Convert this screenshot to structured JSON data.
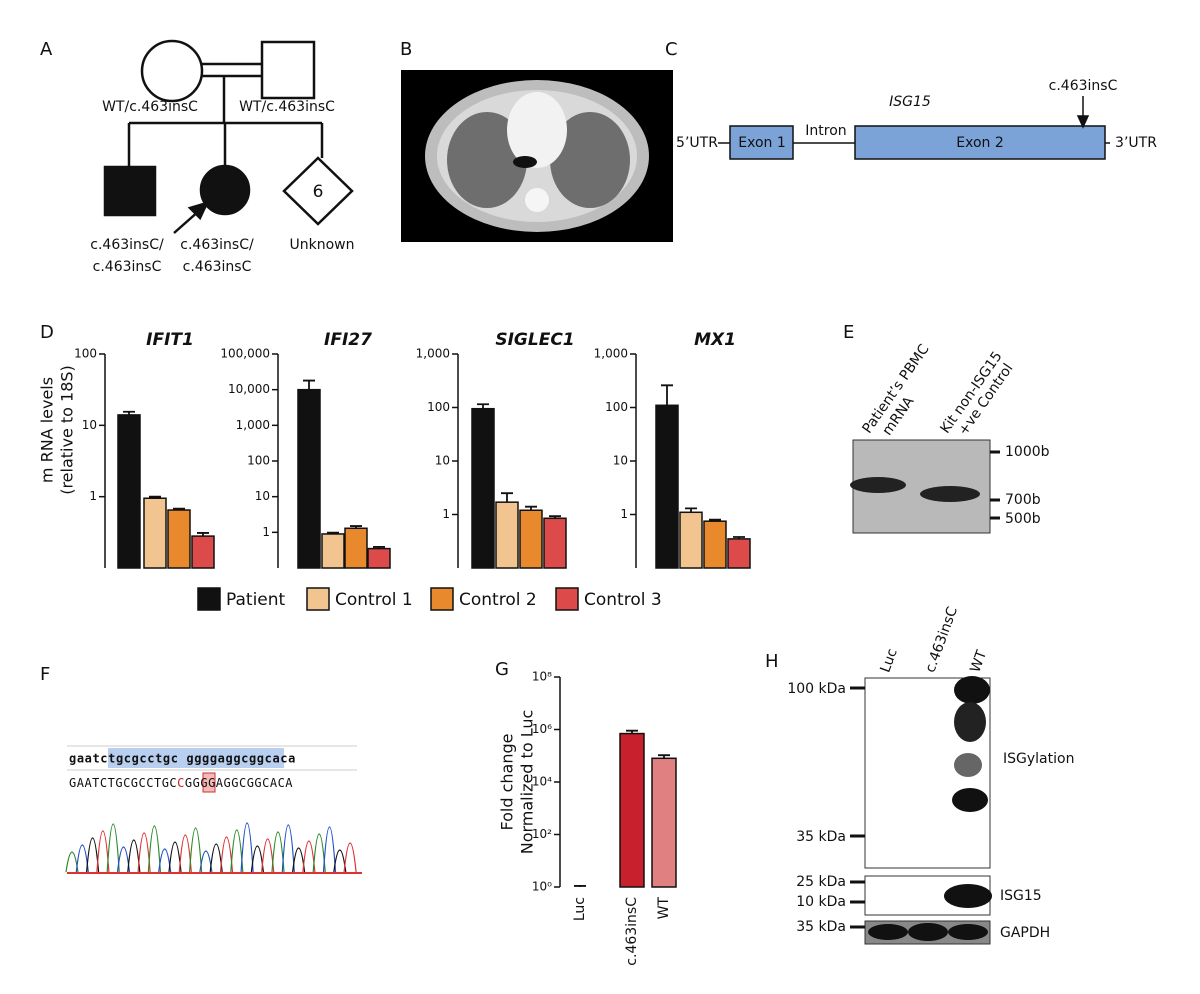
{
  "panel_labels": [
    "A",
    "B",
    "C",
    "D",
    "E",
    "F",
    "G",
    "H"
  ],
  "pedigree": {
    "parents": [
      "WT/c.463insC",
      "WT/c.463insC"
    ],
    "children": [
      [
        "c.463insC/",
        "c.463insC"
      ],
      [
        "c.463insC/",
        "c.463insC"
      ],
      [
        "Unknown"
      ]
    ],
    "sibling_count": "6"
  },
  "gene": {
    "name": "ISG15",
    "utr5": "5’UTR",
    "exon1": "Exon 1",
    "intron": "Intron",
    "exon2": "Exon 2",
    "utr3": "3’UTR",
    "mutation": "c.463insC"
  },
  "legend": [
    {
      "name": "Patient",
      "color": "#111111"
    },
    {
      "name": "Control 1",
      "color": "#f2c48f"
    },
    {
      "name": "Control 2",
      "color": "#e8892e"
    },
    {
      "name": "Control 3",
      "color": "#dc4a4a"
    }
  ],
  "chart_data": [
    {
      "type": "bar",
      "title": "IFIT1",
      "y_label": [
        "m RNA levels",
        "(relative to 18S)"
      ],
      "log_scale": true,
      "categories": [
        null
      ],
      "ylim": [
        0.1,
        100
      ],
      "yticks": [
        1,
        10,
        100
      ],
      "series": [
        {
          "values": [
            14
          ],
          "errors": [
            1.5
          ]
        },
        {
          "values": [
            0.95
          ],
          "errors": [
            0.05
          ]
        },
        {
          "values": [
            0.65
          ],
          "errors": [
            0.03
          ]
        },
        {
          "values": [
            0.28
          ],
          "errors": [
            0.03
          ]
        }
      ]
    },
    {
      "type": "bar",
      "title": "IFI27",
      "log_scale": true,
      "categories": [
        null
      ],
      "ylim": [
        0.1,
        100000
      ],
      "yticks": [
        1,
        10,
        100,
        {
          "value": 1000,
          "label": "1,000"
        },
        {
          "value": 10000,
          "label": "10,000"
        },
        {
          "value": 100000,
          "label": "100,000"
        }
      ],
      "series": [
        {
          "values": [
            10000
          ],
          "errors": [
            8000
          ]
        },
        {
          "values": [
            0.9
          ],
          "errors": [
            0.08
          ]
        },
        {
          "values": [
            1.3
          ],
          "errors": [
            0.2
          ]
        },
        {
          "values": [
            0.35
          ],
          "errors": [
            0.04
          ]
        }
      ]
    },
    {
      "type": "bar",
      "title": "SIGLEC1",
      "log_scale": true,
      "categories": [
        null
      ],
      "ylim": [
        0.1,
        1000
      ],
      "yticks": [
        1,
        10,
        100,
        {
          "value": 1000,
          "label": "1,000"
        }
      ],
      "series": [
        {
          "values": [
            95
          ],
          "errors": [
            20
          ]
        },
        {
          "values": [
            1.7
          ],
          "errors": [
            0.8
          ]
        },
        {
          "values": [
            1.2
          ],
          "errors": [
            0.2
          ]
        },
        {
          "values": [
            0.85
          ],
          "errors": [
            0.08
          ]
        }
      ]
    },
    {
      "type": "bar",
      "title": "MX1",
      "log_scale": true,
      "categories": [
        null
      ],
      "ylim": [
        0.1,
        1000
      ],
      "yticks": [
        1,
        10,
        100,
        {
          "value": 1000,
          "label": "1,000"
        }
      ],
      "series": [
        {
          "values": [
            110
          ],
          "errors": [
            150
          ]
        },
        {
          "values": [
            1.1
          ],
          "errors": [
            0.2
          ]
        },
        {
          "values": [
            0.75
          ],
          "errors": [
            0.05
          ]
        },
        {
          "values": [
            0.35
          ],
          "errors": [
            0.03
          ]
        }
      ]
    },
    {
      "type": "bar",
      "y_label": [
        "Fold change",
        "Normalized to Luc"
      ],
      "log_scale": true,
      "categories": [
        "Luc",
        "c.463insC",
        "WT"
      ],
      "values": [
        1,
        700000,
        80000
      ],
      "errors": [
        0.1,
        200000,
        25000
      ],
      "colors": [
        "#111111",
        "#c8202c",
        "#e08080"
      ],
      "ylim": [
        1,
        100000000
      ],
      "yticks": [
        {
          "value": 1,
          "label": "10⁰"
        },
        {
          "value": 100,
          "label": "10²"
        },
        {
          "value": 10000,
          "label": "10⁴"
        },
        {
          "value": 1000000,
          "label": "10⁶"
        },
        {
          "value": 100000000,
          "label": "10⁸"
        }
      ]
    }
  ],
  "gel": {
    "lanes": [
      [
        "Patient’s PBMC",
        "mRNA"
      ],
      [
        "Kit non-ISG15",
        "+ve Control"
      ]
    ],
    "markers": [
      "1000b",
      "700b",
      "500b"
    ]
  },
  "sequence": {
    "reference": "gaatctgcgcctgc ggggaggcggcaca",
    "read": [
      "GAATCTGCGCCTGC",
      "C",
      "GGGGAGGCGGCACA"
    ]
  },
  "blot": {
    "lanes": [
      "Luc",
      "c.463insC",
      "WT"
    ],
    "markers": [
      "100 kDa",
      "35 kDa",
      "25 kDa",
      "10 kDa",
      "35 kDa"
    ],
    "labels": [
      "ISGylation",
      "ISG15",
      "GAPDH"
    ]
  }
}
